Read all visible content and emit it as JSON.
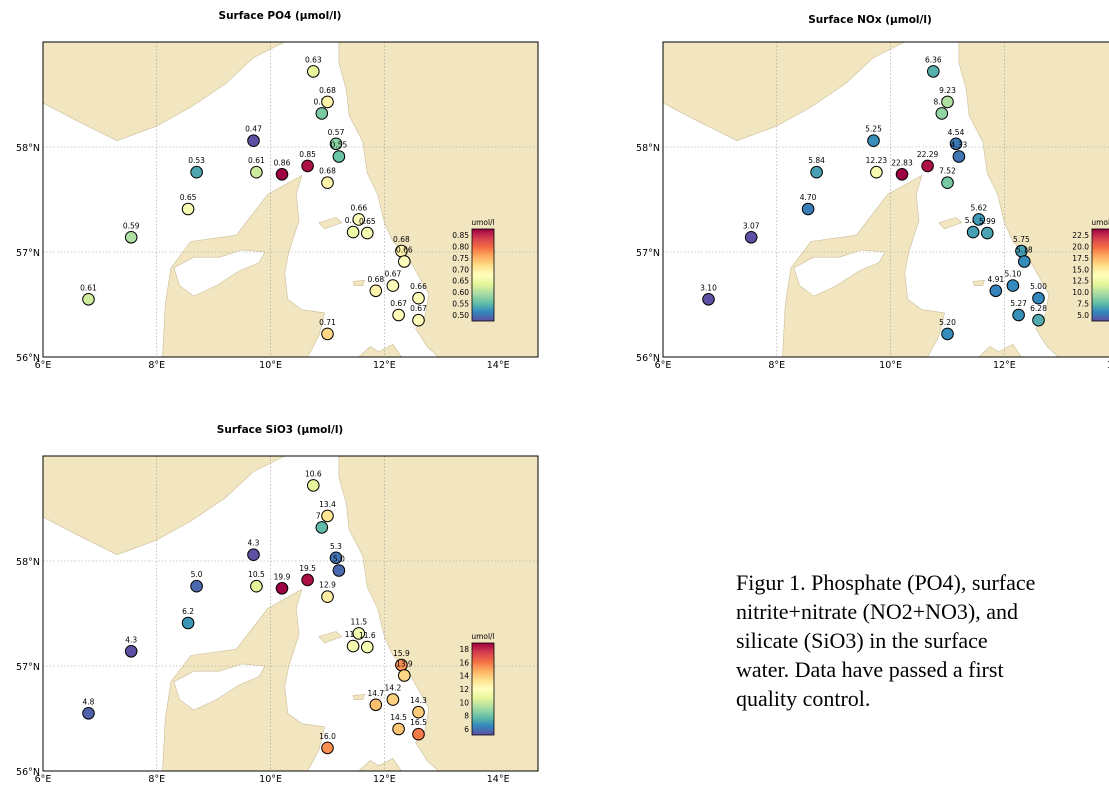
{
  "colors": {
    "land": "#f2e6c1",
    "sea": "#ffffff",
    "frame": "#000000",
    "grid": "#9a9a9a"
  },
  "colormap": [
    "#5e4fa2",
    "#3288bd",
    "#66c2a5",
    "#abdda4",
    "#e6f598",
    "#ffffbf",
    "#fee08b",
    "#fdae61",
    "#f46d43",
    "#d53e4f",
    "#9e0142"
  ],
  "lon_ticks": [
    "6°E",
    "8°E",
    "10°E",
    "12°E",
    "14°E"
  ],
  "lat_ticks": [
    "56°N",
    "57°N",
    "58°N"
  ],
  "stations_lonlat": [
    [
      6.8,
      56.55
    ],
    [
      7.55,
      57.14
    ],
    [
      8.55,
      57.41
    ],
    [
      8.7,
      57.76
    ],
    [
      9.7,
      58.06
    ],
    [
      9.75,
      57.76
    ],
    [
      10.2,
      57.74
    ],
    [
      10.65,
      57.82
    ],
    [
      10.75,
      58.72
    ],
    [
      10.9,
      58.32
    ],
    [
      11.0,
      58.43
    ],
    [
      11.0,
      57.66
    ],
    [
      11.15,
      58.03
    ],
    [
      11.2,
      57.91
    ],
    [
      11.45,
      57.19
    ],
    [
      11.55,
      57.31
    ],
    [
      11.7,
      57.18
    ],
    [
      11.85,
      56.63
    ],
    [
      12.15,
      56.68
    ],
    [
      12.3,
      57.01
    ],
    [
      12.35,
      56.91
    ],
    [
      12.25,
      56.4
    ],
    [
      12.6,
      56.56
    ],
    [
      12.6,
      56.35
    ],
    [
      11.0,
      56.22
    ]
  ],
  "maps": [
    {
      "id": "po4",
      "title": "Surface PO4 (µmol/l)",
      "colorbar_unit": "umol/l",
      "colorbar_ticks": [
        "0.85",
        "0.80",
        "0.75",
        "0.70",
        "0.65",
        "0.60",
        "0.55",
        "0.50"
      ],
      "vmin": 0.47,
      "vmax": 0.86,
      "values": [
        "0.61",
        "0.59",
        "0.65",
        "0.53",
        "0.47",
        "0.61",
        "0.86",
        "0.85",
        "0.63",
        "0.56",
        "0.68",
        "0.68",
        "0.57",
        "0.55",
        "0.64",
        "0.66",
        "0.65",
        "0.68",
        "0.67",
        "0.68",
        "0.66",
        "0.67",
        "0.66",
        "0.67",
        "0.71"
      ]
    },
    {
      "id": "nox",
      "title": "Surface NOx (µmol/l)",
      "colorbar_unit": "umol/l",
      "colorbar_ticks": [
        "22.5",
        "20.0",
        "17.5",
        "15.0",
        "12.5",
        "10.0",
        "7.5",
        "5.0"
      ],
      "vmin": 3.07,
      "vmax": 22.83,
      "values": [
        "3.10",
        "3.07",
        "4.70",
        "5.84",
        "5.25",
        "12.23",
        "22.83",
        "22.29",
        "6.36",
        "8.32",
        "9.23",
        "7.52",
        "4.54",
        "4.33",
        "5.83",
        "5.62",
        "5.99",
        "4.91",
        "5.10",
        "5.75",
        "5.18",
        "5.27",
        "5.00",
        "6.28",
        "5.20"
      ]
    },
    {
      "id": "sio3",
      "title": "Surface SiO3 (µmol/l)",
      "colorbar_unit": "umol/l",
      "colorbar_ticks": [
        "18",
        "16",
        "14",
        "12",
        "10",
        "8",
        "6"
      ],
      "vmin": 4.3,
      "vmax": 19.9,
      "values": [
        "4.8",
        "4.3",
        "6.2",
        "5.0",
        "4.3",
        "10.5",
        "19.9",
        "19.5",
        "10.6",
        "7.2",
        "13.4",
        "12.9",
        "5.3",
        "5.0",
        "11.5",
        "11.5",
        "11.6",
        "14.7",
        "14.2",
        "15.9",
        "13.9",
        "14.5",
        "14.3",
        "16.5",
        "16.0"
      ]
    }
  ],
  "caption": {
    "lines": [
      "Figur 1. Phosphate (PO4), surface",
      "nitrite+nitrate (NO2+NO3), and",
      "silicate (SiO3) in the surface",
      "water. Data have passed a first",
      "quality control."
    ]
  }
}
